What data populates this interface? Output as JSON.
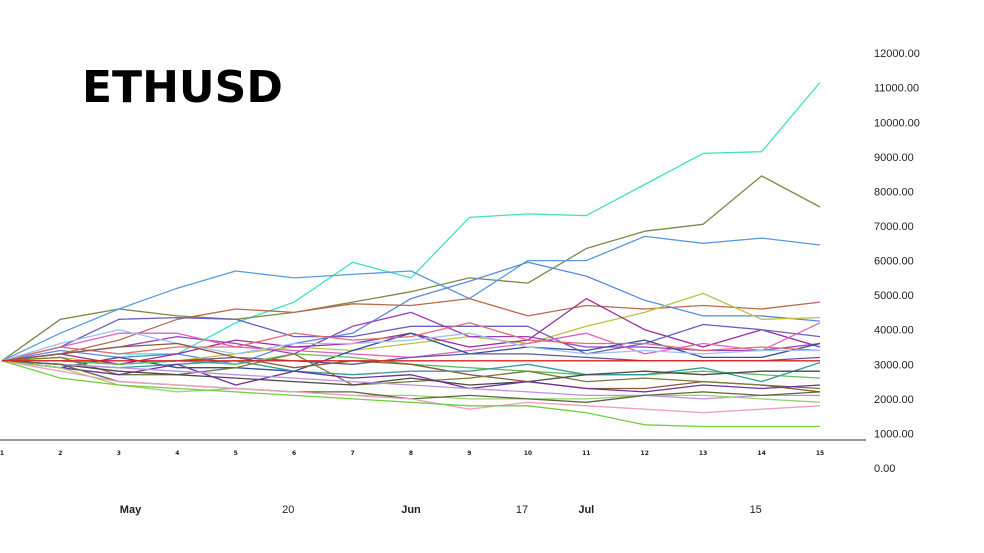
{
  "chart_data": {
    "type": "line",
    "title": "ETHUSD",
    "xlabel": "",
    "ylabel": "",
    "x": [
      "1",
      "2",
      "3",
      "4",
      "5",
      "6",
      "7",
      "8",
      "9",
      "10",
      "11",
      "12",
      "13",
      "14",
      "15"
    ],
    "x_tick_labels": [
      "1",
      "2",
      "3",
      "4",
      "5",
      "6",
      "7",
      "8",
      "9",
      "10",
      "11",
      "12",
      "13",
      "14",
      "15"
    ],
    "month_labels": [
      {
        "text": "May",
        "bold": true,
        "at": 3.2
      },
      {
        "text": "20",
        "bold": false,
        "at": 5.9
      },
      {
        "text": "Jun",
        "bold": true,
        "at": 8.0
      },
      {
        "text": "17",
        "bold": false,
        "at": 9.9
      },
      {
        "text": "Jul",
        "bold": true,
        "at": 11.0
      },
      {
        "text": "15",
        "bold": false,
        "at": 13.9
      }
    ],
    "y_tick_labels": [
      "0.00",
      "1000.00",
      "2000.00",
      "3000.00",
      "4000.00",
      "5000.00",
      "6000.00",
      "7000.00",
      "8000.00",
      "9000.00",
      "10000.00",
      "11000.00",
      "12000.00"
    ],
    "ylim": [
      0,
      12000
    ],
    "grid": false,
    "legend": "none",
    "series": [
      {
        "color": "#40e0c0",
        "values": [
          3100,
          3500,
          3300,
          3300,
          4200,
          4800,
          5950,
          5500,
          7250,
          7350,
          7300,
          8200,
          9100,
          9150,
          11150
        ]
      },
      {
        "color": "#7a8a4a",
        "values": [
          3100,
          4300,
          4600,
          4400,
          4300,
          4500,
          4800,
          5100,
          5500,
          5350,
          6350,
          6850,
          7050,
          8450,
          7550
        ]
      },
      {
        "color": "#5a9ae0",
        "values": [
          3100,
          3900,
          4600,
          5200,
          5700,
          5500,
          5600,
          5700,
          4900,
          6000,
          6000,
          6700,
          6500,
          6650,
          6450
        ]
      },
      {
        "color": "#5a8ae0",
        "values": [
          3100,
          3400,
          3200,
          3300,
          3000,
          3600,
          3900,
          4900,
          5400,
          5950,
          5550,
          4850,
          4400,
          4400,
          4250
        ]
      },
      {
        "color": "#b86a50",
        "values": [
          3100,
          3300,
          3700,
          4300,
          4600,
          4500,
          4750,
          4700,
          4900,
          4400,
          4700,
          4600,
          4700,
          4600,
          4800
        ]
      },
      {
        "color": "#c0c040",
        "values": [
          3100,
          3200,
          3000,
          3100,
          3300,
          3500,
          3400,
          3600,
          3800,
          3600,
          4100,
          4500,
          5050,
          4300,
          4350
        ]
      },
      {
        "color": "#9a2aa0",
        "values": [
          3100,
          3300,
          3000,
          3300,
          3700,
          3500,
          3600,
          3900,
          3500,
          3700,
          4900,
          4000,
          3500,
          4000,
          3500
        ]
      },
      {
        "color": "#6a60c0",
        "values": [
          3100,
          3500,
          4300,
          4350,
          4300,
          3800,
          3800,
          4100,
          4100,
          4100,
          3300,
          3600,
          4150,
          4000,
          3800
        ]
      },
      {
        "color": "#9a40c0",
        "values": [
          3100,
          3300,
          3500,
          3800,
          3600,
          3300,
          4100,
          4500,
          3800,
          3800,
          3500,
          3500,
          3400,
          3400,
          3600
        ]
      },
      {
        "color": "#e060c0",
        "values": [
          3100,
          3500,
          3900,
          3900,
          3500,
          3400,
          3300,
          3200,
          3400,
          3600,
          3900,
          3300,
          3600,
          3400,
          4200
        ]
      },
      {
        "color": "#2a50a0",
        "values": [
          3100,
          2900,
          3200,
          2900,
          2900,
          2800,
          3400,
          3900,
          3300,
          3500,
          3400,
          3700,
          3200,
          3200,
          3600
        ]
      },
      {
        "color": "#e07070",
        "values": [
          3100,
          3500,
          3300,
          3500,
          3500,
          3900,
          3700,
          3800,
          4200,
          3700,
          3600,
          3600,
          3400,
          3500,
          3400
        ]
      },
      {
        "color": "#a0c0f0",
        "values": [
          3100,
          3600,
          4000,
          3600,
          3300,
          3600,
          3600,
          3700,
          3900,
          3500,
          3300,
          3400,
          3300,
          3400,
          3400
        ]
      },
      {
        "color": "#5a5a9a",
        "values": [
          3100,
          3100,
          3000,
          3100,
          3200,
          3100,
          3000,
          3200,
          3300,
          3300,
          3200,
          3100,
          3100,
          3100,
          3200
        ]
      },
      {
        "color": "#60c060",
        "values": [
          3100,
          3100,
          3000,
          3100,
          3000,
          3300,
          3200,
          3000,
          2900,
          2800,
          2700,
          2700,
          2800,
          2700,
          2600
        ]
      },
      {
        "color": "#8a5a3a",
        "values": [
          3100,
          3300,
          3500,
          3600,
          3200,
          2900,
          3100,
          3000,
          2700,
          2500,
          2300,
          2300,
          2500,
          2400,
          2200
        ]
      },
      {
        "color": "#3a9a9a",
        "values": [
          3100,
          3000,
          2900,
          3000,
          3100,
          2800,
          2700,
          2800,
          2800,
          3000,
          2700,
          2700,
          2900,
          2500,
          3050
        ]
      },
      {
        "color": "#7a7a3a",
        "values": [
          3100,
          3200,
          2700,
          2700,
          2900,
          3300,
          2400,
          2500,
          2600,
          2800,
          2500,
          2600,
          2500,
          2400,
          2300
        ]
      },
      {
        "color": "#4a4a4a",
        "values": [
          3100,
          3000,
          2800,
          2700,
          2600,
          2500,
          2400,
          2600,
          2400,
          2500,
          2700,
          2800,
          2700,
          2800,
          2800
        ]
      },
      {
        "color": "#7030a0",
        "values": [
          3100,
          2900,
          2700,
          3000,
          2400,
          2800,
          2600,
          2700,
          2300,
          2500,
          2300,
          2200,
          2400,
          2300,
          2400
        ]
      },
      {
        "color": "#c090e0",
        "values": [
          3100,
          3000,
          2900,
          2800,
          2700,
          2600,
          2500,
          2400,
          2300,
          2200,
          2100,
          2100,
          2000,
          2100,
          2100
        ]
      },
      {
        "color": "#9ad070",
        "values": [
          3100,
          2900,
          2400,
          2200,
          2300,
          2200,
          2100,
          2100,
          2000,
          2000,
          2000,
          2100,
          2100,
          2000,
          1900
        ]
      },
      {
        "color": "#5a6a3a",
        "values": [
          3100,
          3000,
          2500,
          2400,
          2300,
          2200,
          2200,
          2000,
          2100,
          2000,
          1900,
          2100,
          2200,
          2100,
          2200
        ]
      },
      {
        "color": "#f0a0c0",
        "values": [
          3100,
          2800,
          2500,
          2400,
          2300,
          2200,
          2100,
          2000,
          1700,
          1900,
          1800,
          1700,
          1600,
          1700,
          1800
        ]
      },
      {
        "color": "#70d040",
        "values": [
          3100,
          2600,
          2400,
          2300,
          2200,
          2100,
          2000,
          1900,
          1800,
          1800,
          1600,
          1250,
          1200,
          1200,
          1200
        ]
      },
      {
        "color": "#e02020",
        "values": [
          3100,
          3100,
          3100,
          3100,
          3100,
          3100,
          3100,
          3100,
          3100,
          3100,
          3100,
          3100,
          3100,
          3100,
          3100
        ]
      }
    ]
  }
}
